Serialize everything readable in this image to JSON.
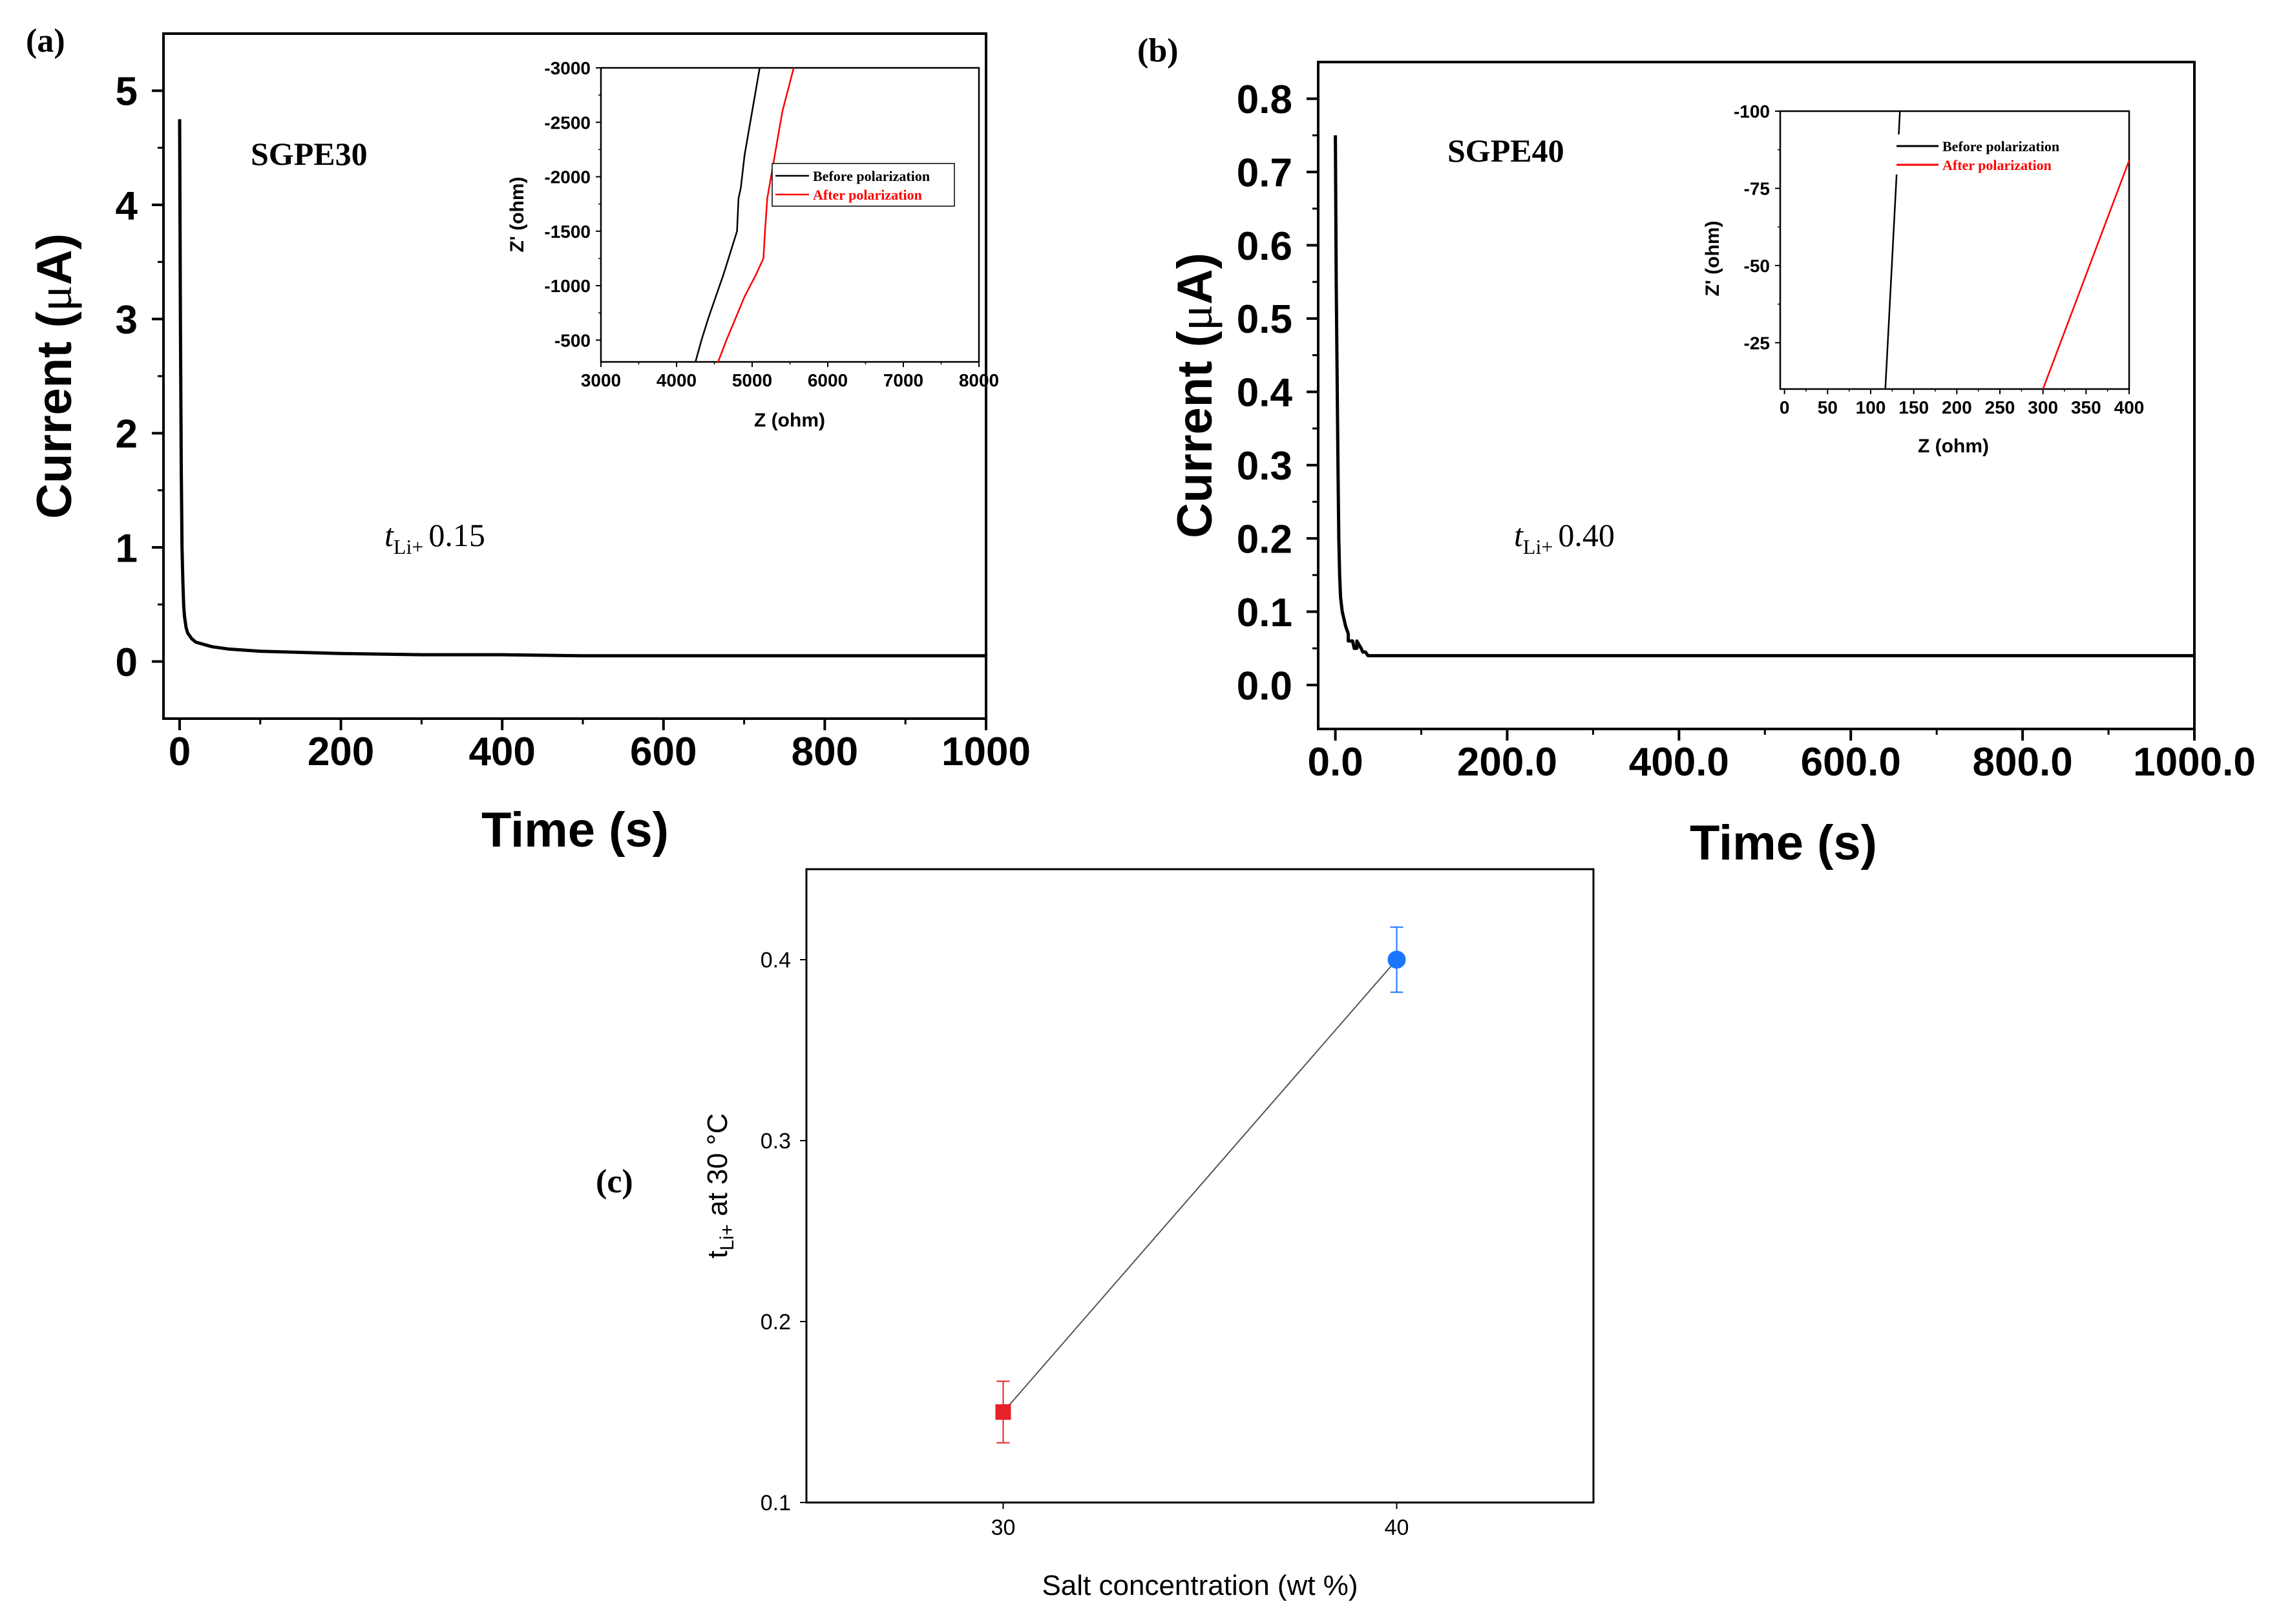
{
  "figure": {
    "panels": {
      "a": {
        "letter": "(a)",
        "sample": "SGPE30",
        "t_symbol": "t",
        "t_sub": "Li+",
        "t_value": "0.15"
      },
      "b": {
        "letter": "(b)",
        "sample": "SGPE40",
        "t_symbol": "t",
        "t_sub": "Li+",
        "t_value": "0.40"
      },
      "c": {
        "letter": "(c)"
      }
    },
    "colors": {
      "black": "#000000",
      "red": "#ff0000",
      "blue": "#1a75ff",
      "grey": "#555555"
    }
  },
  "chart_data": [
    {
      "id": "a-main",
      "type": "line",
      "xlabel": "Time (s)",
      "ylabel_pre": "Current (",
      "ylabel_mu": "μ",
      "ylabel_post": "A)",
      "xlim": [
        -20,
        1000
      ],
      "ylim": [
        -0.5,
        5.5
      ],
      "xticks": [
        0,
        200,
        400,
        600,
        800,
        1000
      ],
      "yticks": [
        0,
        1,
        2,
        3,
        4,
        5
      ],
      "series": [
        {
          "name": "SGPE30",
          "color": "#000000",
          "x": [
            0,
            1,
            2,
            3,
            4,
            5,
            6,
            8,
            10,
            15,
            20,
            30,
            40,
            60,
            80,
            100,
            150,
            200,
            300,
            400,
            500,
            700,
            1000
          ],
          "y": [
            4.75,
            3.0,
            1.7,
            1.0,
            0.7,
            0.5,
            0.4,
            0.3,
            0.25,
            0.2,
            0.17,
            0.15,
            0.13,
            0.11,
            0.1,
            0.09,
            0.08,
            0.07,
            0.06,
            0.06,
            0.05,
            0.05,
            0.05
          ]
        }
      ]
    },
    {
      "id": "a-inset",
      "type": "line",
      "xlabel": "Z (ohm)",
      "ylabel": "Z' (ohm)",
      "xlim": [
        3000,
        8000
      ],
      "ylim": [
        -300,
        -3000
      ],
      "y_reversed": true,
      "xticks": [
        3000,
        4000,
        5000,
        6000,
        7000,
        8000
      ],
      "yticks": [
        -500,
        -1000,
        -1500,
        -2000,
        -2500,
        -3000
      ],
      "legend": "top-right",
      "series": [
        {
          "name": "Before polarization",
          "color": "#000000",
          "x": [
            4250,
            4330,
            4420,
            4520,
            4620,
            4800,
            4820,
            4850,
            4900,
            5000,
            5100
          ],
          "y": [
            -300,
            -500,
            -700,
            -900,
            -1100,
            -1500,
            -1800,
            -1900,
            -2200,
            -2600,
            -3000
          ]
        },
        {
          "name": "After polarization",
          "color": "#ff0000",
          "x": [
            4550,
            4660,
            4780,
            4900,
            5050,
            5150,
            5170,
            5200,
            5300,
            5400,
            5550
          ],
          "y": [
            -300,
            -500,
            -700,
            -900,
            -1100,
            -1250,
            -1500,
            -1800,
            -2200,
            -2600,
            -3000
          ]
        }
      ]
    },
    {
      "id": "b-main",
      "type": "line",
      "xlabel": "Time (s)",
      "ylabel_pre": "Current (",
      "ylabel_mu": "μ",
      "ylabel_post": "A)",
      "xlim": [
        -20,
        1000
      ],
      "ylim": [
        -0.06,
        0.85
      ],
      "xticks": [
        0,
        200,
        400,
        600,
        800,
        1000
      ],
      "yticks": [
        0.0,
        0.1,
        0.2,
        0.3,
        0.4,
        0.5,
        0.6,
        0.7,
        0.8
      ],
      "series": [
        {
          "name": "SGPE40",
          "color": "#000000",
          "x": [
            0,
            1,
            2,
            3,
            4,
            5,
            6,
            8,
            10,
            12,
            15,
            15,
            20,
            22,
            25,
            25,
            30,
            32,
            35,
            38,
            40,
            1000
          ],
          "y": [
            0.75,
            0.55,
            0.43,
            0.3,
            0.2,
            0.15,
            0.12,
            0.1,
            0.09,
            0.08,
            0.07,
            0.06,
            0.06,
            0.05,
            0.05,
            0.06,
            0.05,
            0.045,
            0.045,
            0.04,
            0.04,
            0.04
          ]
        }
      ]
    },
    {
      "id": "b-inset",
      "type": "line",
      "xlabel": "Z (ohm)",
      "ylabel": "Z' (ohm)",
      "xlim": [
        -5,
        400
      ],
      "ylim": [
        -10,
        -100
      ],
      "y_reversed": true,
      "xticks": [
        0,
        50,
        100,
        150,
        200,
        250,
        300,
        350,
        400
      ],
      "yticks": [
        -25,
        -50,
        -75,
        -100
      ],
      "legend": "top-right",
      "series": [
        {
          "name": "Before polarization",
          "color": "#000000",
          "x": [
            117,
            134
          ],
          "y": [
            -10,
            -100
          ]
        },
        {
          "name": "After polarization",
          "color": "#ff0000",
          "x": [
            300,
            400
          ],
          "y": [
            -10,
            -84
          ]
        }
      ]
    },
    {
      "id": "c",
      "type": "scatter",
      "xlabel": "Salt concentration (wt %)",
      "ylabel_t": "t",
      "ylabel_sub": "Li+",
      "ylabel_rest": " at 30 °C",
      "xlim": [
        25,
        45
      ],
      "ylim": [
        0.1,
        0.45
      ],
      "xticks": [
        30,
        40
      ],
      "yticks": [
        0.1,
        0.2,
        0.3,
        0.4
      ],
      "points": [
        {
          "x": 30,
          "y": 0.15,
          "err": 0.017,
          "color": "#e8202a",
          "marker": "square"
        },
        {
          "x": 40,
          "y": 0.4,
          "err": 0.018,
          "color": "#1a75ff",
          "marker": "circle"
        }
      ]
    }
  ]
}
